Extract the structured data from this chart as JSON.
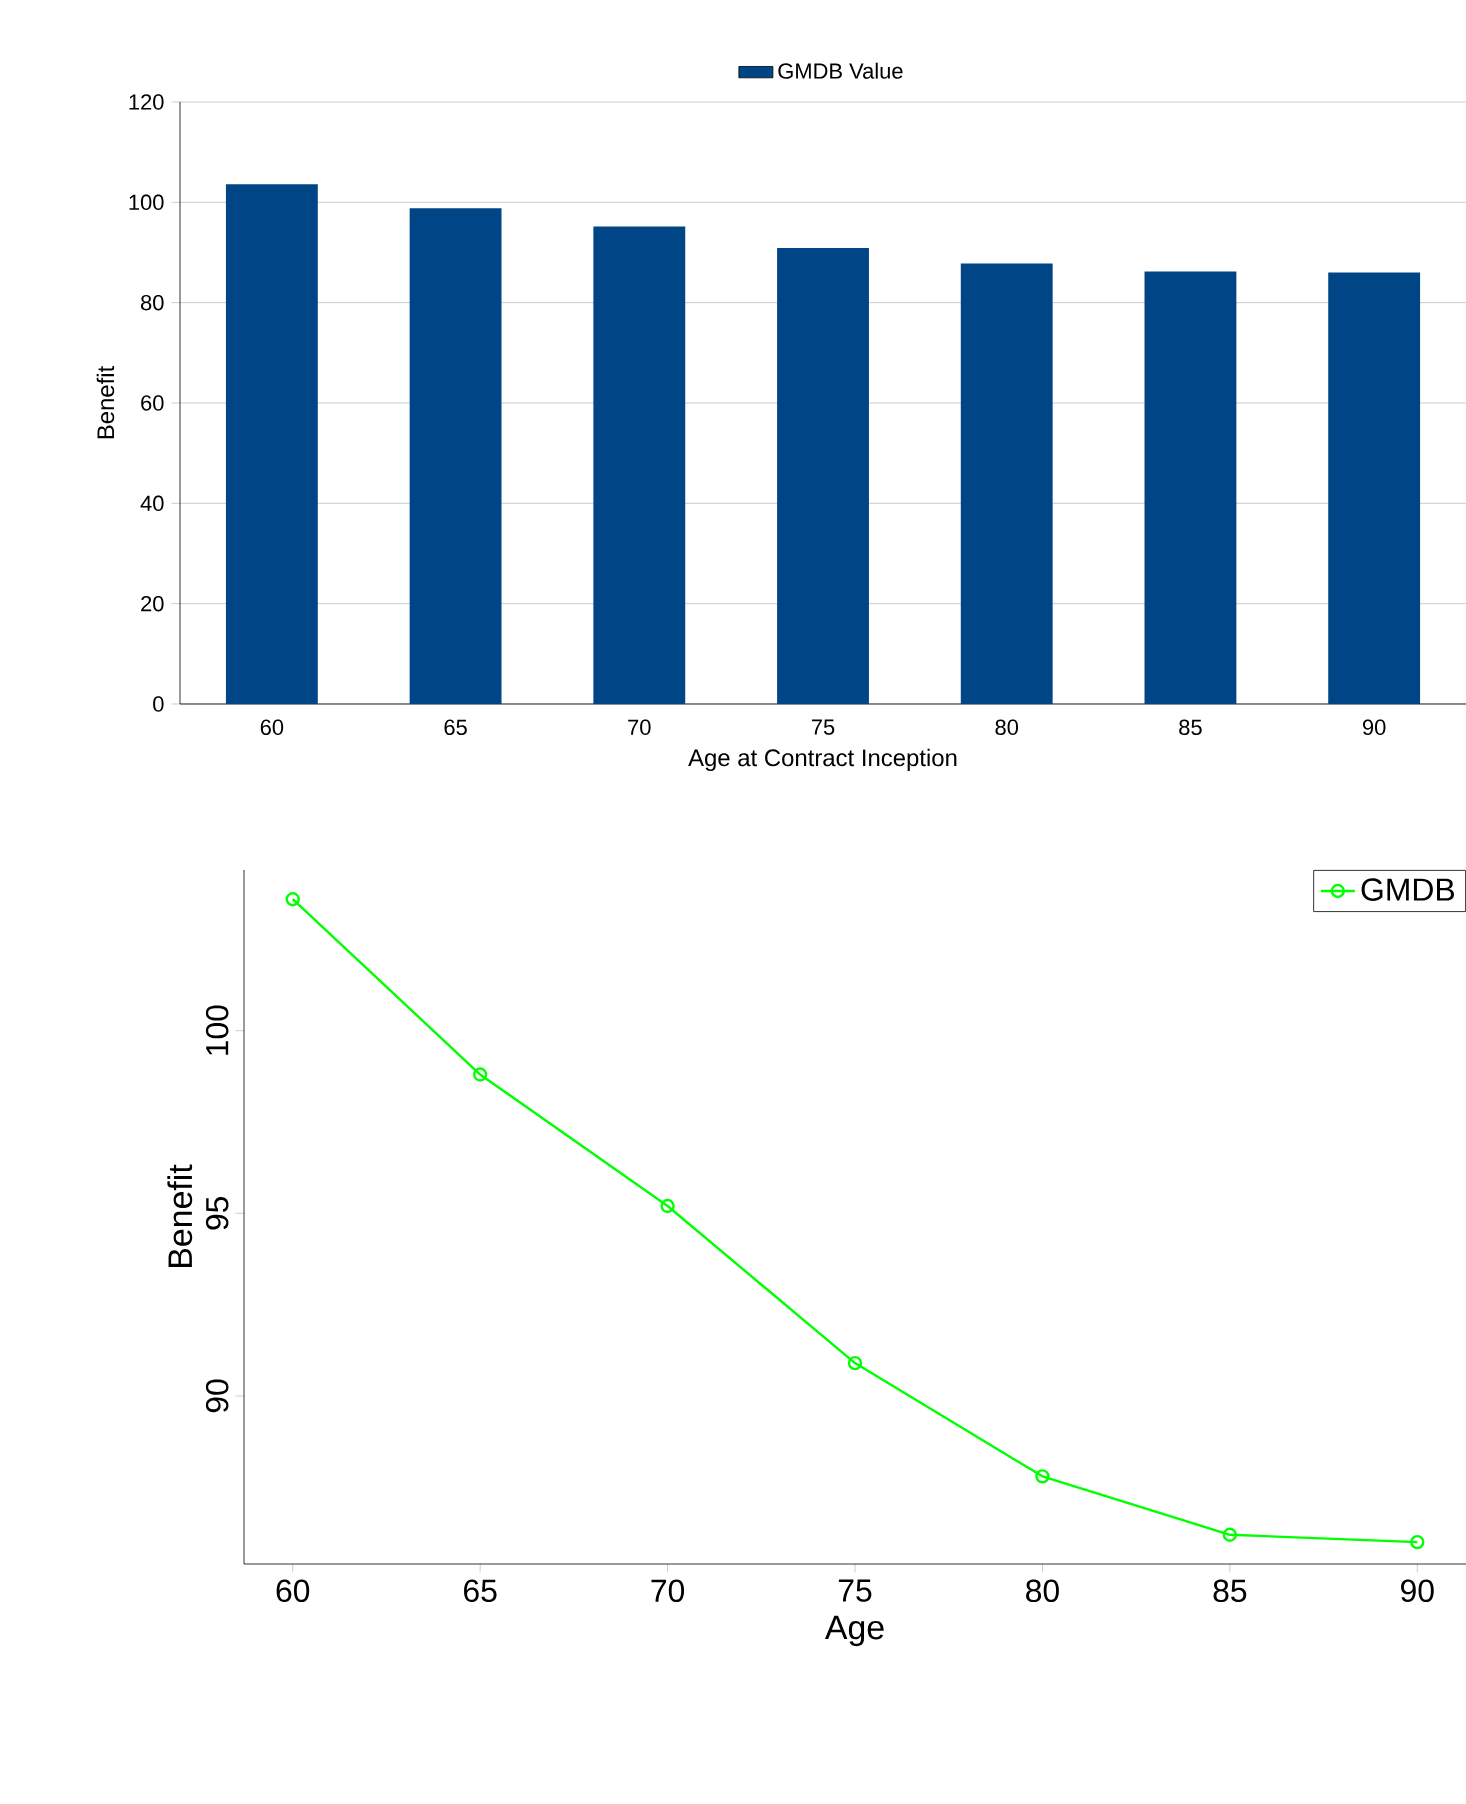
{
  "chart_data": [
    {
      "type": "bar",
      "categories": [
        "60",
        "65",
        "70",
        "75",
        "80",
        "85",
        "90"
      ],
      "series": [
        {
          "name": "GMDB Value",
          "color": "#004586",
          "values": [
            103.6,
            98.8,
            95.2,
            90.9,
            87.8,
            86.2,
            86.0
          ]
        }
      ],
      "xlabel": "Age at Contract Inception",
      "ylabel": "Benefit",
      "ylim": [
        0,
        120
      ],
      "yticks": [
        0,
        20,
        40,
        60,
        80,
        100,
        120
      ],
      "grid": "y",
      "legend": "top"
    },
    {
      "type": "line",
      "x": [
        60,
        65,
        70,
        75,
        80,
        85,
        90
      ],
      "series": [
        {
          "name": "GMDB",
          "color": "#00ff00",
          "values": [
            103.6,
            98.8,
            95.2,
            90.9,
            87.8,
            86.2,
            86.0
          ]
        }
      ],
      "xlabel": "Age",
      "ylabel": "Benefit",
      "xlim": [
        58.7,
        91.3
      ],
      "ylim": [
        85.4,
        104.4
      ],
      "xticks": [
        60,
        65,
        70,
        75,
        80,
        85,
        90
      ],
      "yticks": [
        90,
        95,
        100
      ],
      "marker": "circle",
      "line_style": "solid",
      "legend": "top right"
    }
  ]
}
